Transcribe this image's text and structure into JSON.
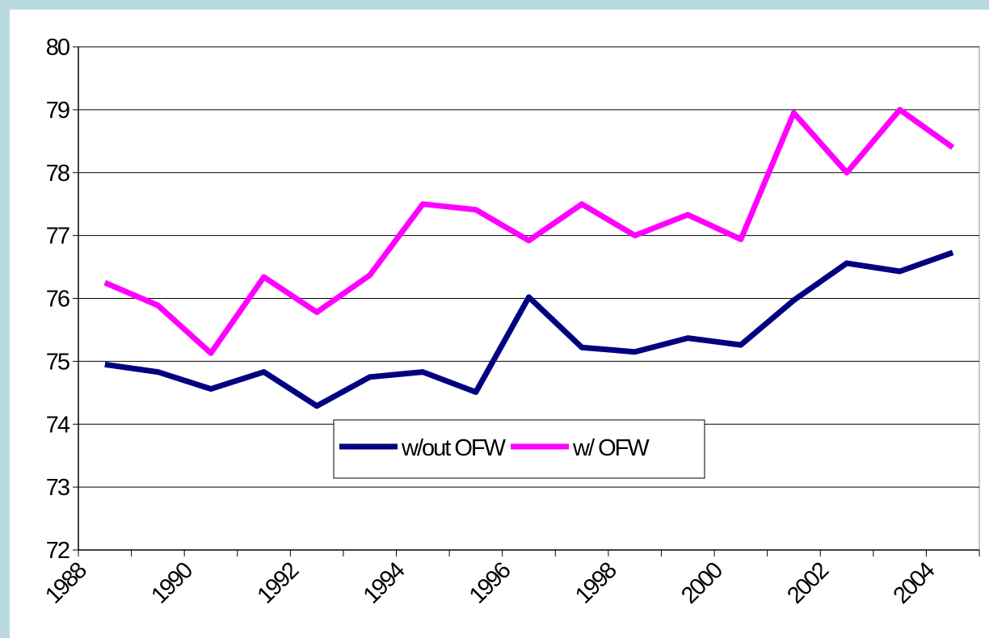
{
  "chart_data": {
    "type": "line",
    "categories": [
      "1988",
      null,
      "1990",
      null,
      "1992",
      null,
      "1994",
      null,
      "1996",
      null,
      "1998",
      null,
      "2000",
      null,
      "2002",
      null,
      "2004"
    ],
    "series": [
      {
        "name": "w/out OFW",
        "color": "#000080",
        "values": [
          74.95,
          74.83,
          74.56,
          74.83,
          74.29,
          74.75,
          74.83,
          74.51,
          76.02,
          75.22,
          75.15,
          75.37,
          75.26,
          75.97,
          76.56,
          76.43,
          76.73
        ]
      },
      {
        "name": "w/ OFW",
        "color": "#ff00ff",
        "values": [
          76.25,
          75.89,
          75.13,
          76.34,
          75.78,
          76.37,
          77.5,
          77.41,
          76.92,
          77.5,
          77.0,
          77.33,
          76.94,
          78.95,
          78.0,
          79.0,
          78.4
        ]
      }
    ],
    "ylim": [
      72,
      80
    ],
    "yticks": [
      72,
      73,
      74,
      75,
      76,
      77,
      78,
      79,
      80
    ],
    "grid": true
  }
}
